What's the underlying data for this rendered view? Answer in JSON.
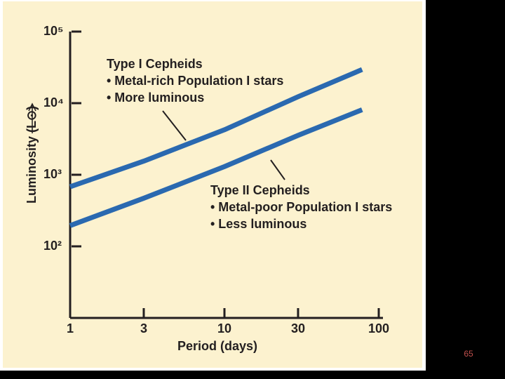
{
  "chart_data": {
    "type": "line",
    "x_label": "Period (days)",
    "y_label": "Luminosity (L⊙)",
    "xscale": "log",
    "yscale": "log",
    "xlim": [
      1,
      100
    ],
    "xticks": [
      1,
      3,
      10,
      30,
      100
    ],
    "ylim": [
      10,
      100000
    ],
    "yticks": [
      {
        "value": 100,
        "label": "10²"
      },
      {
        "value": 1000,
        "label": "10³"
      },
      {
        "value": 10000,
        "label": "10⁴"
      },
      {
        "value": 100000,
        "label": "10⁵"
      }
    ],
    "grid": false,
    "x": [
      1,
      3,
      10,
      30,
      78
    ],
    "series": [
      {
        "name": "Type I Cepheids",
        "notes": [
          "• Metal-rich Population I stars",
          "• More luminous"
        ],
        "color": "#2a69b0",
        "values": [
          680,
          1550,
          4250,
          12300,
          29500
        ]
      },
      {
        "name": "Type II Cepheids",
        "notes": [
          "• Metal-poor Population I stars",
          "• Less luminous"
        ],
        "color": "#2a69b0",
        "values": [
          195,
          470,
          1300,
          3550,
          8100
        ]
      }
    ]
  },
  "slide_number": "65"
}
